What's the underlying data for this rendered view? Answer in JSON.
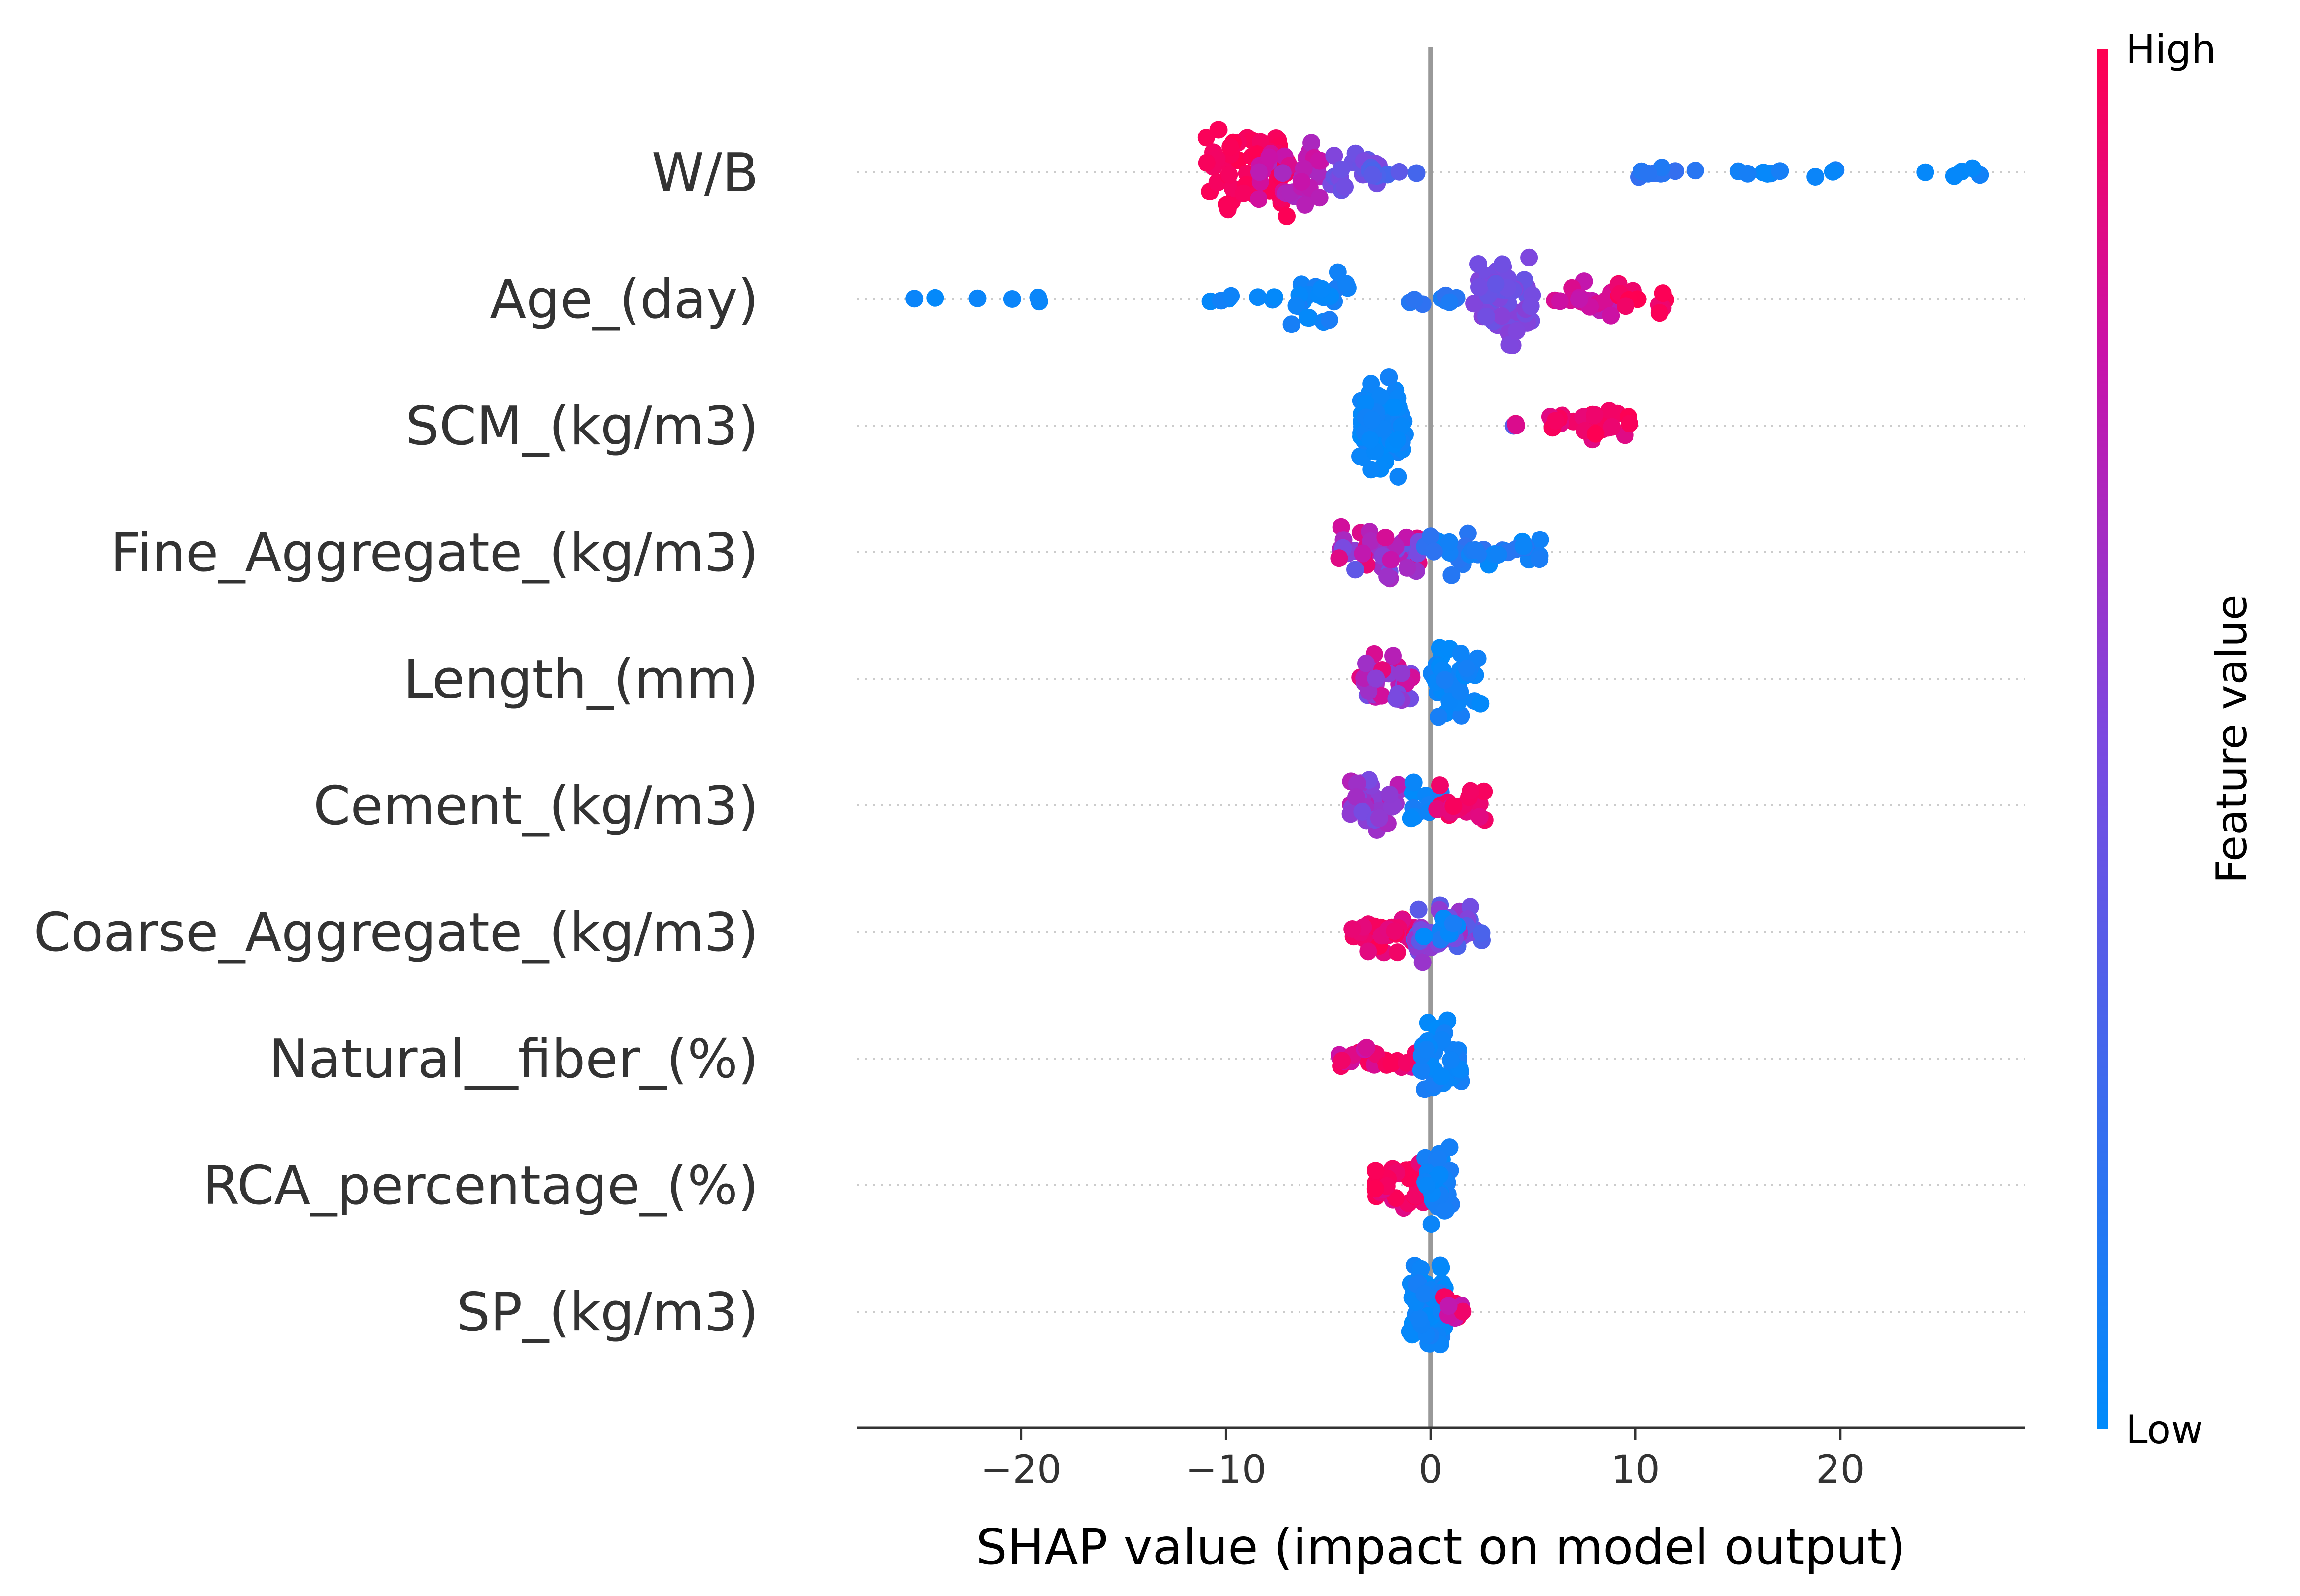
{
  "chart_data": {
    "type": "scatter",
    "subtype": "shap-beeswarm",
    "xlabel": "SHAP value (impact on model output)",
    "xlim": [
      -28,
      29
    ],
    "xticks": [
      -20,
      -10,
      0,
      10,
      20
    ],
    "xtick_labels": [
      "−20",
      "−10",
      "0",
      "10",
      "20"
    ],
    "colorbar": {
      "title": "Feature value",
      "high_label": "High",
      "low_label": "Low",
      "high_color": "#ff0051",
      "low_color": "#008bfb"
    },
    "features": [
      {
        "name": "W/B",
        "clusters": [
          {
            "min": -11,
            "max": -7,
            "n": 55,
            "spread": 0.9,
            "c": [
              0.95,
              1.0
            ]
          },
          {
            "min": -8.5,
            "max": -5,
            "n": 35,
            "spread": 0.7,
            "c": [
              0.65,
              0.85
            ]
          },
          {
            "min": -5,
            "max": -2.5,
            "n": 20,
            "spread": 0.45,
            "c": [
              0.35,
              0.55
            ]
          },
          {
            "min": -3,
            "max": -0.3,
            "n": 10,
            "spread": 0.15,
            "c": [
              0.25,
              0.38
            ]
          },
          {
            "min": 10,
            "max": 13,
            "n": 9,
            "spread": 0.15,
            "c": [
              0.1,
              0.22
            ]
          },
          {
            "min": 15,
            "max": 20,
            "n": 9,
            "spread": 0.1,
            "c": [
              0.0,
              0.1
            ]
          },
          {
            "min": 23.5,
            "max": 27,
            "n": 5,
            "spread": 0.12,
            "c": [
              0.0,
              0.08
            ]
          }
        ]
      },
      {
        "name": "Age_(day)",
        "clusters": [
          {
            "min": -26,
            "max": -18.5,
            "n": 6,
            "spread": 0.05,
            "c": [
              0.0,
              0.05
            ]
          },
          {
            "min": -11,
            "max": -7.5,
            "n": 8,
            "spread": 0.1,
            "c": [
              0.0,
              0.08
            ]
          },
          {
            "min": -7,
            "max": -4,
            "n": 22,
            "spread": 0.65,
            "c": [
              0.0,
              0.12
            ]
          },
          {
            "min": -1.5,
            "max": 1.5,
            "n": 10,
            "spread": 0.12,
            "c": [
              0.1,
              0.2
            ]
          },
          {
            "min": 2,
            "max": 5,
            "n": 60,
            "spread": 0.9,
            "c": [
              0.4,
              0.55
            ]
          },
          {
            "min": 6,
            "max": 9,
            "n": 18,
            "spread": 0.35,
            "c": [
              0.7,
              0.85
            ]
          },
          {
            "min": 8.5,
            "max": 11.5,
            "n": 14,
            "spread": 0.35,
            "c": [
              0.92,
              1.0
            ]
          }
        ]
      },
      {
        "name": "SCM_(kg/m3)",
        "clusters": [
          {
            "min": -3.5,
            "max": -1.2,
            "n": 70,
            "spread": 1.0,
            "c": [
              0.0,
              0.08
            ]
          },
          {
            "min": 3.5,
            "max": 4.2,
            "n": 3,
            "spread": 0.1,
            "c": [
              0.3,
              0.9
            ]
          },
          {
            "min": 5.8,
            "max": 10,
            "n": 30,
            "spread": 0.3,
            "c": [
              0.85,
              1.0
            ]
          }
        ]
      },
      {
        "name": "Fine_Aggregate_(kg/m3)",
        "clusters": [
          {
            "min": -4.5,
            "max": -0.5,
            "n": 45,
            "spread": 0.55,
            "c": [
              0.35,
              0.95
            ]
          },
          {
            "min": -0.3,
            "max": 5.5,
            "n": 35,
            "spread": 0.5,
            "c": [
              0.0,
              0.2
            ]
          }
        ]
      },
      {
        "name": "Length_(mm)",
        "clusters": [
          {
            "min": -3.5,
            "max": -0.8,
            "n": 35,
            "spread": 0.55,
            "c": [
              0.45,
              0.9
            ]
          },
          {
            "min": 0,
            "max": 2.5,
            "n": 40,
            "spread": 0.75,
            "c": [
              0.0,
              0.1
            ]
          }
        ]
      },
      {
        "name": "Cement_(kg/m3)",
        "clusters": [
          {
            "min": -4,
            "max": -1.5,
            "n": 35,
            "spread": 0.55,
            "c": [
              0.45,
              0.75
            ]
          },
          {
            "min": -1,
            "max": 0.5,
            "n": 12,
            "spread": 0.45,
            "c": [
              0.0,
              0.12
            ]
          },
          {
            "min": 0.3,
            "max": 2.8,
            "n": 25,
            "spread": 0.45,
            "c": [
              0.85,
              1.0
            ]
          }
        ]
      },
      {
        "name": "Coarse_Aggregate_(kg/m3)",
        "clusters": [
          {
            "min": -4,
            "max": -0.5,
            "n": 35,
            "spread": 0.4,
            "c": [
              0.85,
              1.0
            ]
          },
          {
            "min": -1,
            "max": 2.5,
            "n": 45,
            "spread": 0.6,
            "c": [
              0.3,
              0.65
            ]
          },
          {
            "min": -0.5,
            "max": 1.5,
            "n": 10,
            "spread": 0.3,
            "c": [
              0.0,
              0.12
            ]
          }
        ]
      },
      {
        "name": "Natural__fiber_(%)",
        "clusters": [
          {
            "min": -4.5,
            "max": -0.5,
            "n": 25,
            "spread": 0.25,
            "c": [
              0.75,
              1.0
            ]
          },
          {
            "min": -0.5,
            "max": 1.5,
            "n": 40,
            "spread": 0.75,
            "c": [
              0.0,
              0.12
            ]
          }
        ]
      },
      {
        "name": "RCA_percentage_(%)",
        "clusters": [
          {
            "min": -2.8,
            "max": -0.3,
            "n": 30,
            "spread": 0.55,
            "c": [
              0.85,
              1.0
            ]
          },
          {
            "min": -0.3,
            "max": 1,
            "n": 30,
            "spread": 0.8,
            "c": [
              0.0,
              0.12
            ]
          }
        ]
      },
      {
        "name": "SP_(kg/m3)",
        "clusters": [
          {
            "min": -1,
            "max": 0.8,
            "n": 55,
            "spread": 1.0,
            "c": [
              0.0,
              0.1
            ]
          },
          {
            "min": 0.5,
            "max": 1.8,
            "n": 12,
            "spread": 0.3,
            "c": [
              0.75,
              1.0
            ]
          }
        ]
      }
    ]
  }
}
